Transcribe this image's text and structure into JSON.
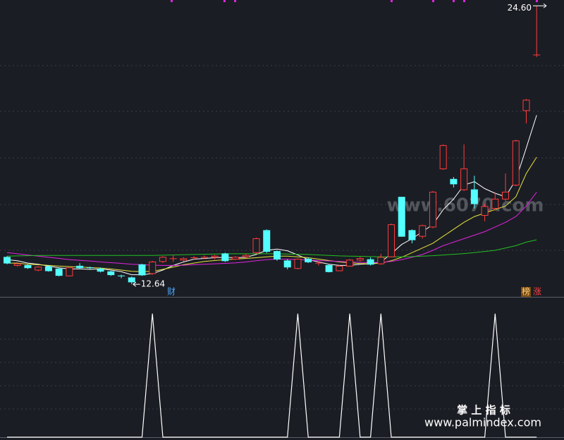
{
  "chart_data": [
    {
      "type": "candlestick",
      "ylim": [
        12.1,
        24.85
      ],
      "up_color": "#ff3b3b",
      "down_color": "#54ffff",
      "open": [
        13.8,
        13.45,
        13.45,
        13.25,
        13.4,
        13.3,
        13.0,
        13.42,
        13.35,
        13.3,
        13.18,
        13.0,
        12.92,
        13.48,
        13.1,
        13.62,
        13.72,
        13.68,
        13.75,
        13.78,
        13.8,
        13.95,
        13.72,
        13.82,
        14.0,
        14.95,
        14.05,
        13.65,
        13.32,
        13.72,
        13.55,
        13.45,
        13.22,
        13.42,
        13.68,
        13.7,
        13.52,
        13.82,
        16.38,
        14.95,
        14.7,
        15.1,
        17.6,
        17.15,
        16.7,
        16.7,
        15.6,
        15.9,
        16.3,
        16.9,
        20.1,
        22.49
      ],
      "high": [
        13.85,
        13.6,
        13.5,
        13.42,
        13.45,
        13.35,
        13.4,
        13.55,
        13.4,
        13.36,
        13.22,
        13.05,
        12.97,
        13.52,
        13.65,
        13.85,
        13.9,
        13.8,
        13.85,
        13.88,
        13.9,
        14.0,
        13.85,
        13.95,
        14.65,
        15.0,
        14.1,
        13.72,
        13.75,
        13.8,
        13.62,
        13.5,
        13.48,
        13.72,
        13.82,
        13.8,
        13.95,
        15.25,
        16.4,
        15.0,
        15.2,
        16.65,
        18.65,
        17.25,
        18.65,
        17.3,
        16.1,
        16.6,
        17.4,
        18.85,
        20.6,
        24.6
      ],
      "low": [
        13.5,
        13.4,
        13.3,
        13.2,
        13.18,
        12.98,
        12.98,
        13.3,
        13.28,
        13.15,
        13.0,
        12.9,
        12.64,
        13.0,
        13.05,
        13.55,
        13.6,
        13.62,
        13.7,
        13.72,
        13.7,
        13.6,
        13.68,
        13.75,
        13.95,
        13.98,
        13.65,
        13.28,
        13.28,
        13.55,
        13.45,
        13.15,
        13.2,
        13.4,
        13.62,
        13.45,
        13.48,
        13.8,
        14.68,
        14.4,
        14.6,
        15.05,
        17.55,
        16.8,
        16.65,
        15.9,
        15.35,
        15.8,
        16.2,
        16.85,
        19.55,
        22.4
      ],
      "close": [
        13.55,
        13.52,
        13.35,
        13.38,
        13.22,
        13.02,
        13.35,
        13.35,
        13.33,
        13.2,
        13.05,
        12.97,
        12.74,
        13.04,
        13.6,
        13.8,
        13.74,
        13.74,
        13.78,
        13.8,
        13.85,
        13.65,
        13.8,
        13.88,
        14.6,
        14.05,
        13.72,
        13.38,
        13.72,
        13.6,
        13.55,
        13.18,
        13.42,
        13.68,
        13.75,
        13.5,
        13.8,
        15.2,
        14.7,
        14.55,
        15.16,
        16.6,
        18.6,
        16.95,
        17.6,
        16.1,
        15.98,
        16.3,
        16.6,
        18.8,
        20.55,
        22.49
      ],
      "series": [
        {
          "color": "#ffffff",
          "values": [
            13.7,
            13.65,
            13.55,
            13.5,
            13.42,
            13.35,
            13.3,
            13.3,
            13.28,
            13.3,
            13.25,
            13.18,
            13.05,
            13.05,
            13.1,
            13.25,
            13.45,
            13.6,
            13.72,
            13.75,
            13.78,
            13.8,
            13.78,
            13.8,
            13.92,
            14.1,
            14.15,
            14.08,
            13.9,
            13.7,
            13.6,
            13.5,
            13.45,
            13.45,
            13.5,
            13.52,
            13.6,
            13.95,
            14.35,
            14.6,
            14.9,
            15.2,
            15.85,
            16.3,
            16.9,
            17.05,
            16.75,
            16.55,
            16.4,
            17.13,
            18.5,
            19.9
          ]
        },
        {
          "color": "#e6e63c",
          "values": [
            13.55,
            13.55,
            13.5,
            13.48,
            13.45,
            13.42,
            13.4,
            13.38,
            13.36,
            13.34,
            13.3,
            13.25,
            13.2,
            13.18,
            13.2,
            13.28,
            13.38,
            13.48,
            13.55,
            13.62,
            13.66,
            13.7,
            13.72,
            13.75,
            13.78,
            13.82,
            13.85,
            13.85,
            13.82,
            13.78,
            13.72,
            13.66,
            13.6,
            13.56,
            13.53,
            13.52,
            13.55,
            13.65,
            13.8,
            14.0,
            14.2,
            14.4,
            14.7,
            15.0,
            15.3,
            15.55,
            15.7,
            15.85,
            16.0,
            16.4,
            17.4,
            18.1
          ]
        },
        {
          "color": "#e024e0",
          "values": [
            14.0,
            13.95,
            13.9,
            13.85,
            13.8,
            13.75,
            13.7,
            13.67,
            13.64,
            13.6,
            13.57,
            13.54,
            13.5,
            13.48,
            13.46,
            13.45,
            13.45,
            13.46,
            13.48,
            13.5,
            13.52,
            13.54,
            13.56,
            13.6,
            13.65,
            13.7,
            13.72,
            13.72,
            13.7,
            13.68,
            13.66,
            13.64,
            13.62,
            13.6,
            13.58,
            13.57,
            13.58,
            13.62,
            13.7,
            13.8,
            13.92,
            14.1,
            14.3,
            14.45,
            14.6,
            14.75,
            14.9,
            15.1,
            15.3,
            15.55,
            16.0,
            16.6
          ]
        },
        {
          "color": "#22c022",
          "values": [
            13.85,
            13.86,
            13.87,
            13.88,
            13.88,
            13.88,
            13.88,
            13.88,
            13.88,
            13.88,
            13.88,
            13.88,
            13.88,
            13.88,
            13.88,
            13.89,
            13.9,
            13.91,
            13.92,
            13.93,
            13.94,
            13.95,
            13.95,
            13.95,
            13.95,
            13.95,
            13.95,
            13.94,
            13.93,
            13.92,
            13.9,
            13.88,
            13.86,
            13.85,
            13.84,
            13.83,
            13.82,
            13.82,
            13.82,
            13.83,
            13.85,
            13.87,
            13.9,
            13.93,
            13.96,
            14.0,
            14.05,
            14.1,
            14.2,
            14.3,
            14.45,
            14.55
          ]
        }
      ],
      "high_label": {
        "value": 24.6,
        "label": "24.60"
      },
      "low_label": {
        "value": 12.64,
        "label": "12.64"
      },
      "event_tags": [
        "财",
        "榜",
        "涨"
      ],
      "watermark": "www.6070.com"
    },
    {
      "type": "line",
      "ylim": [
        0,
        1.13
      ],
      "color": "#ffffff",
      "values": [
        0,
        0,
        0,
        0,
        0,
        0,
        0,
        0,
        0,
        0,
        0,
        0,
        0,
        0,
        1,
        0,
        0,
        0,
        0,
        0,
        0,
        0,
        0,
        0,
        0,
        0,
        0,
        0,
        1,
        0,
        0,
        0,
        0,
        1,
        0,
        0,
        1,
        0,
        0,
        0,
        0,
        0,
        0,
        0,
        0,
        0,
        0,
        1,
        0,
        0,
        0,
        0
      ]
    }
  ],
  "footer": {
    "brand": "掌 上 指 标",
    "url": "www.palmindex.com"
  }
}
